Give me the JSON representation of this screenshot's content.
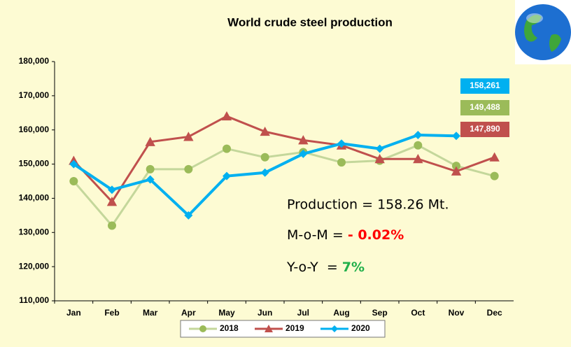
{
  "chart_data": {
    "type": "line",
    "title": "World crude steel production",
    "categories": [
      "Jan",
      "Feb",
      "Mar",
      "Apr",
      "May",
      "Jun",
      "Jul",
      "Aug",
      "Sep",
      "Oct",
      "Nov",
      "Dec"
    ],
    "series": [
      {
        "name": "2018",
        "color": "#c4d79b",
        "marker_color": "#9bbb59",
        "marker": "circle",
        "values": [
          145000,
          132000,
          148500,
          148500,
          154500,
          152000,
          153500,
          150500,
          151000,
          155500,
          149488,
          146500
        ],
        "value_labels": [
          null,
          null,
          null,
          null,
          null,
          null,
          null,
          null,
          null,
          null,
          "149,488",
          null
        ]
      },
      {
        "name": "2019",
        "color": "#c0504d",
        "marker_color": "#c0504d",
        "marker": "triangle",
        "values": [
          151000,
          139000,
          156500,
          158000,
          164000,
          159500,
          157000,
          155500,
          151500,
          151500,
          147890,
          152000
        ],
        "value_labels": [
          null,
          null,
          null,
          null,
          null,
          null,
          null,
          null,
          null,
          null,
          "147,890",
          null
        ]
      },
      {
        "name": "2020",
        "color": "#00b0f0",
        "marker_color": "#00b0f0",
        "marker": "diamond",
        "values": [
          150000,
          142500,
          145500,
          135000,
          146500,
          147500,
          153000,
          156000,
          154500,
          158500,
          158261,
          null
        ],
        "value_labels": [
          null,
          null,
          null,
          null,
          null,
          null,
          null,
          null,
          null,
          null,
          "158,261",
          null
        ]
      }
    ],
    "ylim": [
      110000,
      180000
    ],
    "yticks": [
      {
        "value": 110000,
        "label": "110,000"
      },
      {
        "value": 120000,
        "label": "120,000"
      },
      {
        "value": 130000,
        "label": "130,000"
      },
      {
        "value": 140000,
        "label": "140,000"
      },
      {
        "value": 150000,
        "label": "150,000"
      },
      {
        "value": 160000,
        "label": "160,000"
      },
      {
        "value": 170000,
        "label": "170,000"
      },
      {
        "value": 180000,
        "label": "180,000"
      }
    ],
    "grid": false,
    "legend": "bottom",
    "annotations": [
      "Production = 158.26 Mt.",
      "M-o-M = ",
      "- 0.02%",
      "Y-o-Y  = ",
      "7%"
    ]
  }
}
